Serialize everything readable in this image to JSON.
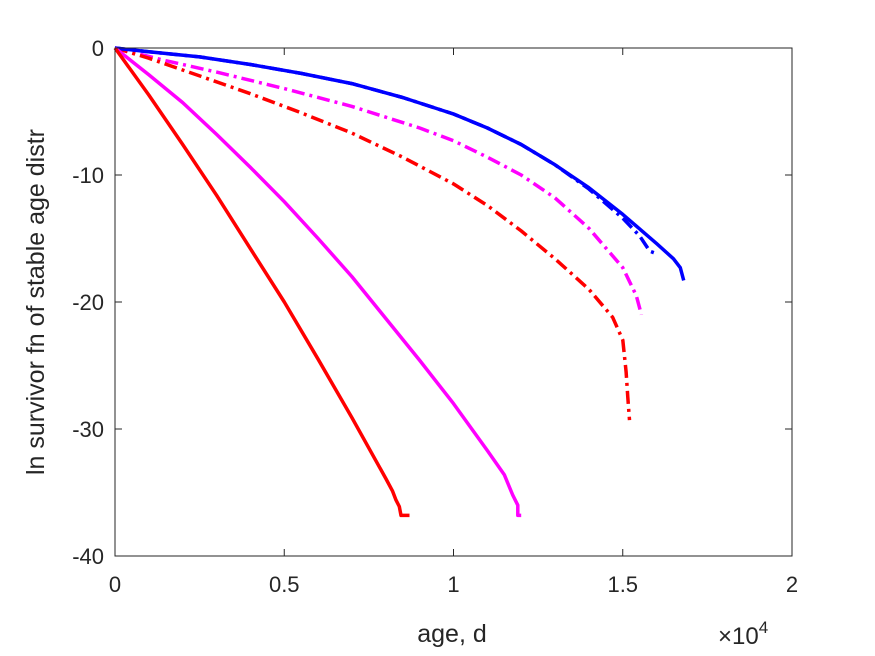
{
  "chart_data": {
    "type": "line",
    "title": "",
    "xlabel": "age, d",
    "ylabel": "ln survivor fn of stable age distr",
    "x_exponent_label": {
      "base": "×10",
      "exp": "4"
    },
    "xlim": [
      0,
      2
    ],
    "ylim": [
      -40,
      0
    ],
    "x_unit_multiplier": 10000,
    "xticks": [
      0,
      0.5,
      1,
      1.5,
      2
    ],
    "xtick_labels": [
      "0",
      "0.5",
      "1",
      "1.5",
      "2"
    ],
    "yticks": [
      0,
      -10,
      -20,
      -30,
      -40
    ],
    "ytick_labels": [
      "0",
      "-10",
      "-20",
      "-30",
      "-40"
    ],
    "grid": false,
    "legend": "none",
    "series": [
      {
        "color": "#ff00ff",
        "style": "dashdot",
        "points": [
          [
            0,
            0
          ],
          [
            0.15,
            -1.0
          ],
          [
            0.3,
            -1.9
          ],
          [
            0.5,
            -3.2
          ],
          [
            0.7,
            -4.6
          ],
          [
            0.9,
            -6.3
          ],
          [
            1.0,
            -7.3
          ],
          [
            1.1,
            -8.6
          ],
          [
            1.2,
            -10.0
          ],
          [
            1.3,
            -11.8
          ],
          [
            1.4,
            -14.2
          ],
          [
            1.5,
            -17.3
          ],
          [
            1.54,
            -19.5
          ],
          [
            1.555,
            -21.0
          ]
        ]
      },
      {
        "color": "#ff0000",
        "style": "dashdot",
        "points": [
          [
            0,
            0
          ],
          [
            0.1,
            -0.8
          ],
          [
            0.25,
            -2.2
          ],
          [
            0.4,
            -3.6
          ],
          [
            0.55,
            -5.1
          ],
          [
            0.7,
            -6.7
          ],
          [
            0.85,
            -8.6
          ],
          [
            1.0,
            -10.7
          ],
          [
            1.1,
            -12.4
          ],
          [
            1.2,
            -14.4
          ],
          [
            1.3,
            -16.6
          ],
          [
            1.4,
            -19.0
          ],
          [
            1.47,
            -21.2
          ],
          [
            1.5,
            -23.0
          ],
          [
            1.51,
            -25.5
          ],
          [
            1.515,
            -27.5
          ],
          [
            1.52,
            -29.3
          ]
        ]
      },
      {
        "color": "#0000ff",
        "style": "dashdot",
        "points": [
          [
            0,
            0
          ],
          [
            0.1,
            -0.3
          ],
          [
            0.25,
            -0.7
          ],
          [
            0.4,
            -1.3
          ],
          [
            0.55,
            -2.0
          ],
          [
            0.7,
            -2.8
          ],
          [
            0.85,
            -3.9
          ],
          [
            1.0,
            -5.2
          ],
          [
            1.1,
            -6.3
          ],
          [
            1.2,
            -7.6
          ],
          [
            1.3,
            -9.2
          ],
          [
            1.4,
            -11.1
          ],
          [
            1.5,
            -13.4
          ],
          [
            1.55,
            -14.8
          ],
          [
            1.58,
            -16.0
          ],
          [
            1.6,
            -16.2
          ]
        ]
      },
      {
        "color": "#0000ff",
        "style": "solid",
        "points": [
          [
            0,
            0
          ],
          [
            0.1,
            -0.3
          ],
          [
            0.25,
            -0.7
          ],
          [
            0.4,
            -1.3
          ],
          [
            0.55,
            -2.0
          ],
          [
            0.7,
            -2.8
          ],
          [
            0.85,
            -3.9
          ],
          [
            1.0,
            -5.2
          ],
          [
            1.1,
            -6.3
          ],
          [
            1.2,
            -7.6
          ],
          [
            1.3,
            -9.2
          ],
          [
            1.4,
            -11.0
          ],
          [
            1.5,
            -13.1
          ],
          [
            1.6,
            -15.4
          ],
          [
            1.65,
            -16.6
          ],
          [
            1.67,
            -17.3
          ],
          [
            1.68,
            -18.3
          ]
        ]
      },
      {
        "color": "#ff00ff",
        "style": "solid",
        "points": [
          [
            0,
            0
          ],
          [
            0.1,
            -2.1
          ],
          [
            0.2,
            -4.3
          ],
          [
            0.3,
            -6.8
          ],
          [
            0.4,
            -9.4
          ],
          [
            0.5,
            -12.1
          ],
          [
            0.6,
            -15.0
          ],
          [
            0.7,
            -18.0
          ],
          [
            0.8,
            -21.3
          ],
          [
            0.9,
            -24.6
          ],
          [
            1.0,
            -28.0
          ],
          [
            1.1,
            -31.7
          ],
          [
            1.15,
            -33.6
          ],
          [
            1.175,
            -35.2
          ],
          [
            1.19,
            -36.0
          ],
          [
            1.19,
            -36.8
          ],
          [
            1.2,
            -36.8
          ]
        ]
      },
      {
        "color": "#ff0000",
        "style": "solid",
        "points": [
          [
            0,
            0
          ],
          [
            0.1,
            -3.7
          ],
          [
            0.2,
            -7.6
          ],
          [
            0.3,
            -11.6
          ],
          [
            0.4,
            -15.8
          ],
          [
            0.5,
            -20.0
          ],
          [
            0.6,
            -24.5
          ],
          [
            0.7,
            -29.1
          ],
          [
            0.8,
            -33.9
          ],
          [
            0.82,
            -34.9
          ],
          [
            0.83,
            -35.6
          ],
          [
            0.84,
            -36.1
          ],
          [
            0.845,
            -36.8
          ],
          [
            0.87,
            -36.8
          ]
        ]
      }
    ]
  }
}
